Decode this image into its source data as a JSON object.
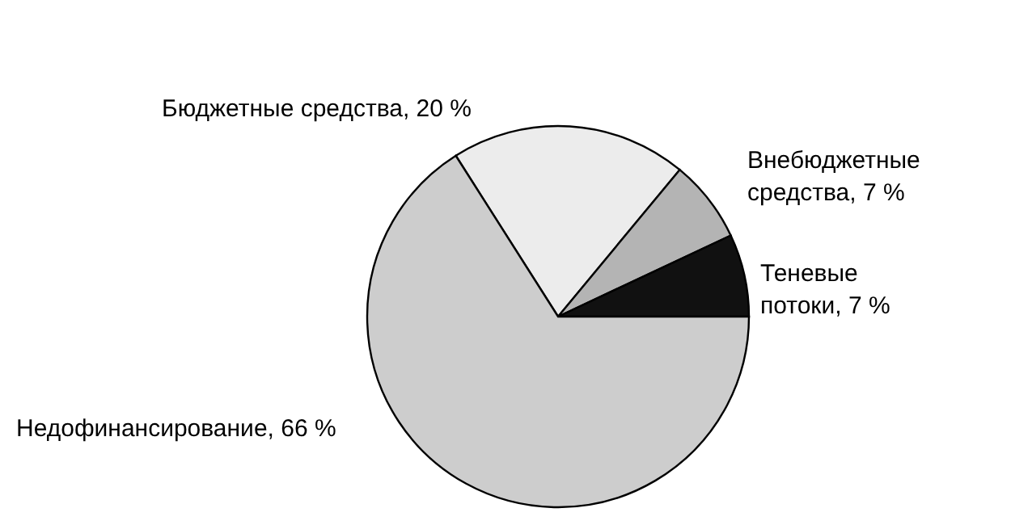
{
  "chart_data": {
    "type": "pie",
    "categories": [
      "Бюджетные средства",
      "Внебюджетные средства",
      "Теневые потоки",
      "Недофинансирование"
    ],
    "values": [
      20,
      7,
      7,
      66
    ],
    "value_labels": [
      "20 %",
      "7 %",
      "7 %",
      "66 %"
    ],
    "colors": [
      "#ececec",
      "#b4b4b4",
      "#111111",
      "#cdcdcd"
    ]
  }
}
